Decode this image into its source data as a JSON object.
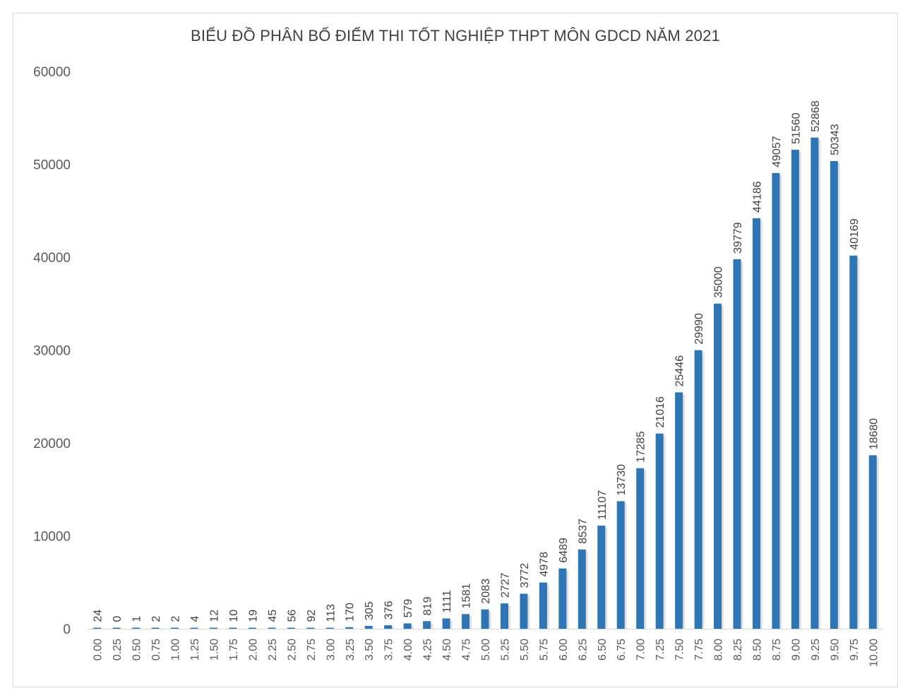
{
  "chart_data": {
    "type": "bar",
    "title": "BIỂU ĐỒ PHÂN BỐ ĐIỂM THI TỐT NGHIỆP THPT MÔN GDCD NĂM 2021",
    "xlabel": "",
    "ylabel": "",
    "ylim": [
      0,
      60000
    ],
    "yticks": [
      "0",
      "10000",
      "20000",
      "30000",
      "40000",
      "50000",
      "60000"
    ],
    "grid": false,
    "legend": "none",
    "bar_color": "#2E75B6",
    "categories": [
      "0.00",
      "0.25",
      "0.50",
      "0.75",
      "1.00",
      "1.25",
      "1.50",
      "1.75",
      "2.00",
      "2.25",
      "2.50",
      "2.75",
      "3.00",
      "3.25",
      "3.50",
      "3.75",
      "4.00",
      "4.25",
      "4.50",
      "4.75",
      "5.00",
      "5.25",
      "5.50",
      "5.75",
      "6.00",
      "6.25",
      "6.50",
      "6.75",
      "7.00",
      "7.25",
      "7.50",
      "7.75",
      "8.00",
      "8.25",
      "8.50",
      "8.75",
      "9.00",
      "9.25",
      "9.50",
      "9.75",
      "10.00"
    ],
    "values": [
      24,
      0,
      1,
      2,
      2,
      4,
      12,
      10,
      19,
      45,
      56,
      92,
      113,
      170,
      305,
      376,
      579,
      819,
      1111,
      1581,
      2083,
      2727,
      3772,
      4978,
      6489,
      8537,
      11107,
      13730,
      17285,
      21016,
      25446,
      29990,
      35000,
      39779,
      44186,
      49057,
      51560,
      52868,
      50343,
      40169,
      18680
    ]
  }
}
